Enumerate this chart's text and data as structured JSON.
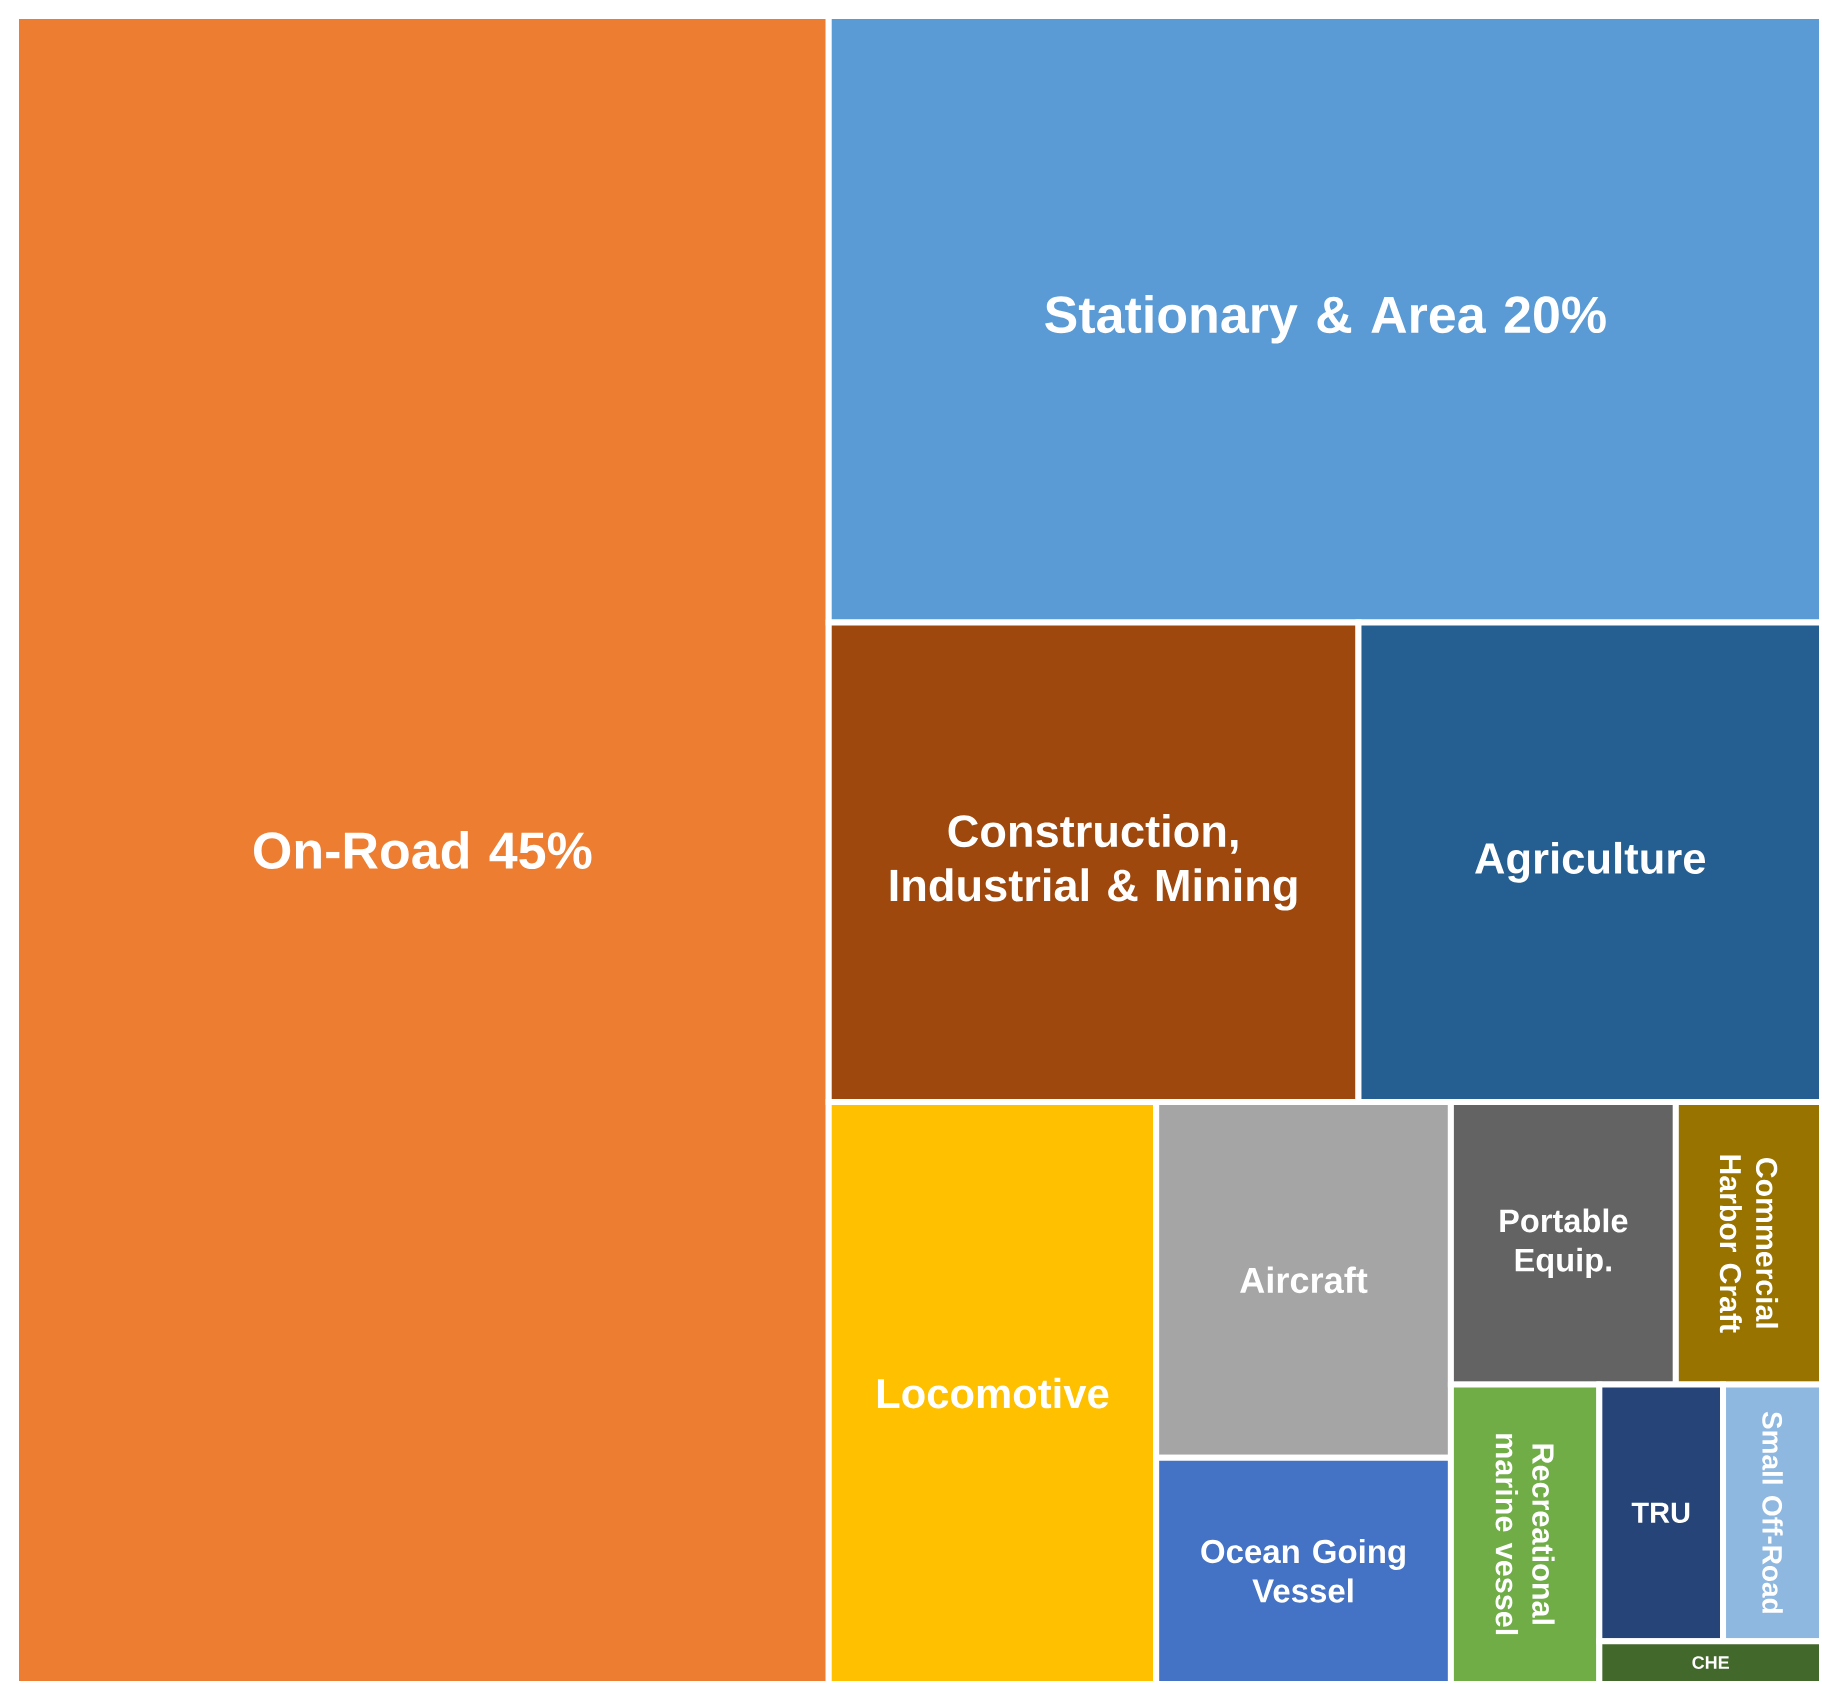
{
  "chart_data": {
    "type": "other",
    "categories": [
      "On-Road",
      "Stationary & Area",
      "Construction, Industrial & Mining",
      "Agriculture",
      "Locomotive",
      "Aircraft",
      "Ocean Going Vessel",
      "Portable Equip.",
      "Commercial Harbor Craft",
      "Recreational marine vessel",
      "TRU",
      "Small Off-Road",
      "CHE"
    ],
    "values": [
      45,
      20,
      null,
      null,
      null,
      null,
      null,
      null,
      null,
      null,
      null,
      null,
      null
    ],
    "value_labels": [
      "45%",
      "20%",
      null,
      null,
      null,
      null,
      null,
      null,
      null,
      null,
      null,
      null,
      null
    ],
    "colors": [
      "#ed7d31",
      "#5b9bd5",
      "#9e480e",
      "#255e91",
      "#ffc000",
      "#a5a5a5",
      "#4472c4",
      "#636363",
      "#997300",
      "#70ad47",
      "#264478",
      "#8fb8e0",
      "#43682b"
    ]
  }
}
